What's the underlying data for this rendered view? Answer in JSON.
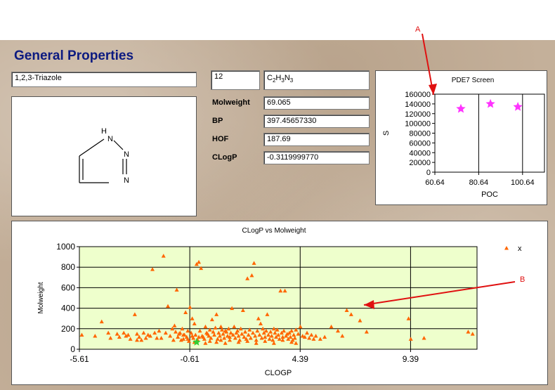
{
  "header": {
    "title": "General Properties"
  },
  "compound": {
    "name": "1,2,3-Triazole",
    "id": "12",
    "formula": "C2H3N3",
    "formula_parts": [
      "C",
      "2",
      "H",
      "3",
      "N",
      "3"
    ],
    "structure_atoms": [
      "H",
      "N",
      "N",
      "N"
    ]
  },
  "properties": [
    {
      "label": "Molweight",
      "value": "69.065"
    },
    {
      "label": "BP",
      "value": "397.45657330"
    },
    {
      "label": "HOF",
      "value": "187.69"
    },
    {
      "label": "CLogP",
      "value": "-0.3119999770"
    }
  ],
  "annotations": {
    "arrow_a": "A",
    "arrow_b": "B",
    "arrow_color": "#e01010"
  },
  "chart_data": [
    {
      "type": "scatter",
      "title": "PDE7 Screen",
      "xlabel": "POC",
      "ylabel": "S",
      "xlim": [
        60.64,
        110.64
      ],
      "ylim": [
        0,
        160000
      ],
      "xticks": [
        "60.64",
        "80.64",
        "100.64"
      ],
      "yticks": [
        "0",
        "20000",
        "40000",
        "60000",
        "80000",
        "100000",
        "120000",
        "140000",
        "160000"
      ],
      "marker": "star",
      "marker_color": "#ff33ff",
      "plot_bg": "#ffffff",
      "points": [
        [
          72.5,
          130000
        ],
        [
          86.0,
          140000
        ],
        [
          98.5,
          134000
        ]
      ]
    },
    {
      "type": "scatter",
      "title": "CLogP vs Molweight",
      "xlabel": "CLOGP",
      "ylabel": "Molweight",
      "xlim": [
        -5.61,
        12.4
      ],
      "ylim": [
        0,
        1000
      ],
      "xticks": [
        "-5.61",
        "-0.61",
        "4.39",
        "9.39"
      ],
      "yticks": [
        "0",
        "200",
        "400",
        "600",
        "800",
        "1000"
      ],
      "legend": [
        "x"
      ],
      "legend_position": "top-right",
      "marker": "triangle",
      "marker_color": "#ff6600",
      "highlight_color": "#33cc33",
      "highlight_point": [
        -0.3,
        69
      ],
      "plot_bg": "#eeffcc",
      "points": [
        [
          -5.5,
          140
        ],
        [
          -4.6,
          270
        ],
        [
          -4.3,
          160
        ],
        [
          -3.4,
          140
        ],
        [
          -3.1,
          340
        ],
        [
          -3.0,
          150
        ],
        [
          -2.9,
          120
        ],
        [
          -2.6,
          110
        ],
        [
          -2.3,
          780
        ],
        [
          -1.8,
          910
        ],
        [
          -2.0,
          180
        ],
        [
          -1.7,
          160
        ],
        [
          -1.6,
          420
        ],
        [
          -1.4,
          200
        ],
        [
          -1.3,
          230
        ],
        [
          -1.2,
          580
        ],
        [
          -0.9,
          100
        ],
        [
          -0.8,
          360
        ],
        [
          -0.7,
          180
        ],
        [
          -0.6,
          410
        ],
        [
          -0.5,
          300
        ],
        [
          -0.4,
          250
        ],
        [
          -0.3,
          830
        ],
        [
          -0.2,
          850
        ],
        [
          -0.1,
          790
        ],
        [
          0.0,
          120
        ],
        [
          0.2,
          150
        ],
        [
          0.4,
          290
        ],
        [
          0.6,
          340
        ],
        [
          0.8,
          220
        ],
        [
          1.0,
          180
        ],
        [
          1.3,
          400
        ],
        [
          1.5,
          160
        ],
        [
          1.8,
          380
        ],
        [
          2.0,
          690
        ],
        [
          2.2,
          720
        ],
        [
          2.3,
          840
        ],
        [
          2.5,
          300
        ],
        [
          2.6,
          250
        ],
        [
          2.9,
          340
        ],
        [
          3.2,
          200
        ],
        [
          3.5,
          570
        ],
        [
          3.7,
          570
        ],
        [
          3.8,
          150
        ],
        [
          4.2,
          190
        ],
        [
          4.4,
          220
        ],
        [
          4.6,
          120
        ],
        [
          5.0,
          100
        ],
        [
          5.8,
          220
        ],
        [
          6.1,
          180
        ],
        [
          6.5,
          380
        ],
        [
          6.7,
          340
        ],
        [
          7.1,
          280
        ],
        [
          7.4,
          170
        ],
        [
          9.3,
          300
        ],
        [
          9.4,
          100
        ],
        [
          10.0,
          110
        ],
        [
          12.0,
          170
        ],
        [
          12.2,
          150
        ],
        [
          -3.8,
          120
        ],
        [
          -3.6,
          160
        ],
        [
          -3.3,
          100
        ],
        [
          -2.8,
          90
        ],
        [
          -2.4,
          130
        ],
        [
          -2.2,
          160
        ],
        [
          -1.9,
          110
        ],
        [
          -1.1,
          150
        ],
        [
          -1.0,
          90
        ],
        [
          -0.95,
          200
        ],
        [
          -0.85,
          140
        ],
        [
          -0.75,
          120
        ],
        [
          -0.65,
          80
        ],
        [
          -0.55,
          160
        ],
        [
          -0.45,
          110
        ],
        [
          -0.35,
          140
        ],
        [
          -0.25,
          90
        ],
        [
          -0.15,
          180
        ],
        [
          -0.05,
          130
        ],
        [
          0.05,
          100
        ],
        [
          0.1,
          220
        ],
        [
          0.15,
          160
        ],
        [
          0.25,
          130
        ],
        [
          0.3,
          190
        ],
        [
          0.35,
          110
        ],
        [
          0.45,
          170
        ],
        [
          0.5,
          140
        ],
        [
          0.55,
          210
        ],
        [
          0.65,
          100
        ],
        [
          0.7,
          160
        ],
        [
          0.75,
          130
        ],
        [
          0.85,
          190
        ],
        [
          0.9,
          150
        ],
        [
          0.95,
          110
        ],
        [
          1.05,
          170
        ],
        [
          1.1,
          130
        ],
        [
          1.15,
          200
        ],
        [
          1.2,
          90
        ],
        [
          1.25,
          160
        ],
        [
          1.35,
          140
        ],
        [
          1.4,
          220
        ],
        [
          1.45,
          110
        ],
        [
          1.55,
          180
        ],
        [
          1.6,
          130
        ],
        [
          1.65,
          90
        ],
        [
          1.7,
          200
        ],
        [
          1.75,
          150
        ],
        [
          1.85,
          120
        ],
        [
          1.9,
          170
        ],
        [
          1.95,
          100
        ],
        [
          2.05,
          140
        ],
        [
          2.1,
          190
        ],
        [
          2.15,
          110
        ],
        [
          2.25,
          160
        ],
        [
          2.35,
          130
        ],
        [
          2.4,
          90
        ],
        [
          2.45,
          180
        ],
        [
          2.55,
          140
        ],
        [
          2.65,
          110
        ],
        [
          2.7,
          200
        ],
        [
          2.75,
          160
        ],
        [
          2.8,
          120
        ],
        [
          2.85,
          180
        ],
        [
          2.95,
          140
        ],
        [
          3.0,
          100
        ],
        [
          3.05,
          170
        ],
        [
          3.1,
          130
        ],
        [
          3.15,
          90
        ],
        [
          3.25,
          160
        ],
        [
          3.3,
          120
        ],
        [
          3.35,
          190
        ],
        [
          3.4,
          140
        ],
        [
          3.45,
          100
        ],
        [
          3.55,
          160
        ],
        [
          3.6,
          120
        ],
        [
          3.65,
          180
        ],
        [
          3.75,
          130
        ],
        [
          3.85,
          100
        ],
        [
          3.9,
          160
        ],
        [
          3.95,
          120
        ],
        [
          4.0,
          180
        ],
        [
          4.05,
          90
        ],
        [
          4.1,
          140
        ],
        [
          4.15,
          110
        ],
        [
          4.3,
          150
        ],
        [
          4.5,
          130
        ],
        [
          4.7,
          160
        ],
        [
          4.8,
          110
        ],
        [
          4.9,
          140
        ],
        [
          5.1,
          130
        ],
        [
          5.3,
          100
        ],
        [
          5.5,
          120
        ],
        [
          6.3,
          130
        ],
        [
          -4.9,
          130
        ],
        [
          -4.2,
          110
        ],
        [
          -3.9,
          150
        ],
        [
          -3.5,
          130
        ],
        [
          -3.0,
          90
        ],
        [
          -2.7,
          160
        ],
        [
          -2.5,
          140
        ],
        [
          -2.1,
          110
        ],
        [
          -1.5,
          130
        ],
        [
          -1.35,
          90
        ],
        [
          -1.25,
          170
        ],
        [
          -1.15,
          120
        ],
        [
          -1.05,
          160
        ],
        [
          -0.9,
          140
        ],
        [
          -0.7,
          100
        ],
        [
          -0.5,
          130
        ],
        [
          -0.4,
          70
        ],
        [
          -0.2,
          120
        ],
        [
          0.1,
          60
        ],
        [
          0.3,
          80
        ],
        [
          0.6,
          70
        ],
        [
          0.8,
          90
        ],
        [
          1.0,
          60
        ],
        [
          1.2,
          120
        ],
        [
          1.6,
          70
        ],
        [
          2.0,
          80
        ],
        [
          2.4,
          60
        ],
        [
          2.8,
          80
        ],
        [
          3.2,
          60
        ],
        [
          3.6,
          90
        ],
        [
          4.0,
          70
        ],
        [
          4.2,
          60
        ]
      ]
    }
  ]
}
